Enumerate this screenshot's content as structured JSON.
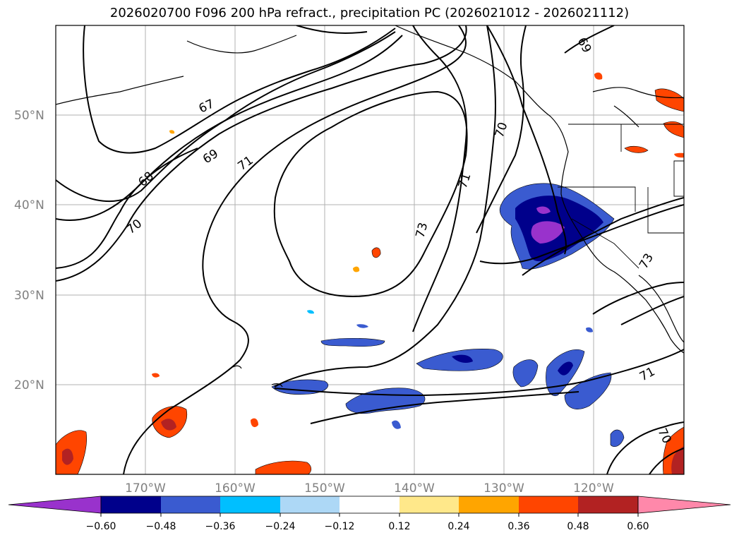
{
  "title": "2026020700 F096 200 hPa refract., precipitation PC (2026021012 - 2026021112)",
  "lat_labels": [
    "50°N",
    "40°N",
    "30°N",
    "20°N"
  ],
  "lon_labels": [
    "170°W",
    "160°W",
    "150°W",
    "140°W",
    "130°W",
    "120°W"
  ],
  "contour_labels": [
    "67",
    "68",
    "69",
    "70",
    "71",
    "73",
    "70",
    "71",
    "69",
    "73",
    "71",
    "70"
  ],
  "colorbar": {
    "ticks": [
      "−0.60",
      "−0.48",
      "−0.36",
      "−0.24",
      "−0.12",
      "0.12",
      "0.24",
      "0.36",
      "0.48",
      "0.60"
    ],
    "colors": [
      "#9932cc",
      "#00008b",
      "#3a5bd0",
      "#00bfff",
      "#add8f6",
      "#ffffff",
      "#ffe88a",
      "#ffa500",
      "#ff4500",
      "#b22222",
      "#ff88aa"
    ]
  }
}
